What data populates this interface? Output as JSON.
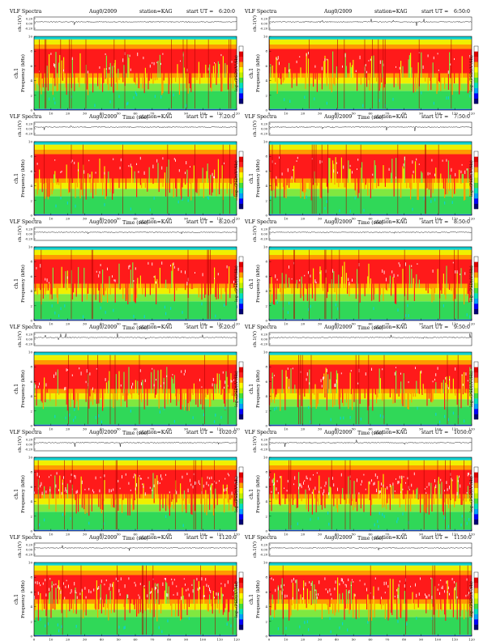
{
  "chart_data": {
    "type": "heatmap",
    "panel_header": {
      "title": "VLF Spectra",
      "date": "Aug0/2009",
      "station": "station=KAG",
      "start_prefix": "start  UT ="
    },
    "waveform_axis": {
      "ylabel": "ch.1(V)",
      "ticks": [
        "0.20",
        "0.00",
        "-0.20"
      ],
      "ylim": [
        -0.2,
        0.2
      ]
    },
    "spectrogram_axis": {
      "ylabel_channel": "ch.1",
      "ylabel": "Frequency (kHz)",
      "yticks": [
        "0",
        "2",
        "4",
        "6",
        "8",
        "10"
      ],
      "ylim": [
        0,
        10
      ],
      "xlabel": "Time (sec)",
      "xticks": [
        "0",
        "10",
        "20",
        "30",
        "40",
        "50",
        "60",
        "70",
        "80",
        "90",
        "100",
        "110",
        "120"
      ],
      "xlim": [
        0,
        120
      ]
    },
    "colorbar": {
      "label": "log₁₀(PSD)(V²/Hz)",
      "colors": [
        "#000078",
        "#0000ff",
        "#00a0ff",
        "#00e0c0",
        "#40e040",
        "#c0f000",
        "#ffff00",
        "#ffa000",
        "#ff2020",
        "#e00000",
        "#ffffff"
      ]
    },
    "panels": [
      {
        "start": "6:20:0"
      },
      {
        "start": "6:50:0"
      },
      {
        "start": "7:20:0"
      },
      {
        "start": "7:50:0"
      },
      {
        "start": "8:20:0"
      },
      {
        "start": "8:50:0"
      },
      {
        "start": "9:20:0"
      },
      {
        "start": "9:50:0"
      },
      {
        "start": "1020:0"
      },
      {
        "start": "1050:0"
      },
      {
        "start": "1120:0"
      },
      {
        "start": "1150:0"
      }
    ]
  }
}
